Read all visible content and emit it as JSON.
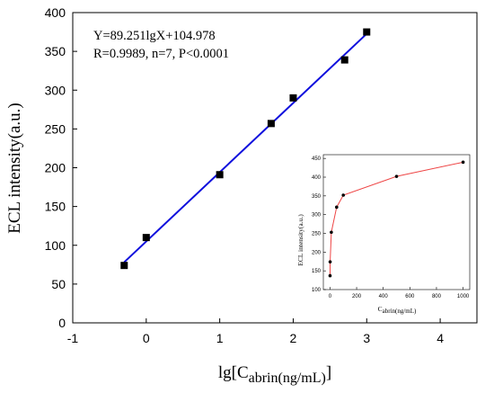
{
  "chart_data": [
    {
      "type": "scatter",
      "title": "",
      "xlabel_main": "lg[C",
      "xlabel_sub": "abrin(ng/mL)",
      "xlabel_close": "]",
      "ylabel": "ECL intensity(a.u.)",
      "xlim": [
        -1,
        4.5
      ],
      "ylim": [
        0,
        400
      ],
      "x_ticks": [
        -1,
        0,
        1,
        2,
        3,
        4
      ],
      "y_ticks": [
        0,
        50,
        100,
        150,
        200,
        250,
        300,
        350,
        400
      ],
      "series": [
        {
          "x": [
            -0.3,
            0,
            1,
            1.7,
            2,
            2.7,
            3
          ],
          "y": [
            74,
            110,
            191,
            257,
            290,
            339,
            375
          ],
          "marker": "square",
          "color": "#000000"
        }
      ],
      "fit_line": {
        "x": [
          -0.3,
          3
        ],
        "y": [
          78.2,
          372.7
        ],
        "color": "#1010dd"
      },
      "annotations": [
        "Y=89.251lgX+104.978",
        "R=0.9989, n=7, P<0.0001"
      ]
    },
    {
      "type": "line",
      "title": "",
      "xlabel_main": "C",
      "xlabel_sub": "abrin(ng/mL)",
      "ylabel": "ECL intensity(a.u.)",
      "xlim": [
        -50,
        1050
      ],
      "ylim": [
        100,
        460
      ],
      "x_ticks": [
        0,
        200,
        400,
        600,
        800,
        1000
      ],
      "y_ticks": [
        100,
        150,
        200,
        250,
        300,
        350,
        400,
        450
      ],
      "series": [
        {
          "x": [
            0.5,
            1,
            10,
            50,
            100,
            500,
            1000
          ],
          "y": [
            137,
            174,
            253,
            320,
            352,
            402,
            440
          ],
          "line_color": "#ee4444",
          "marker_color": "#000000"
        }
      ]
    }
  ]
}
